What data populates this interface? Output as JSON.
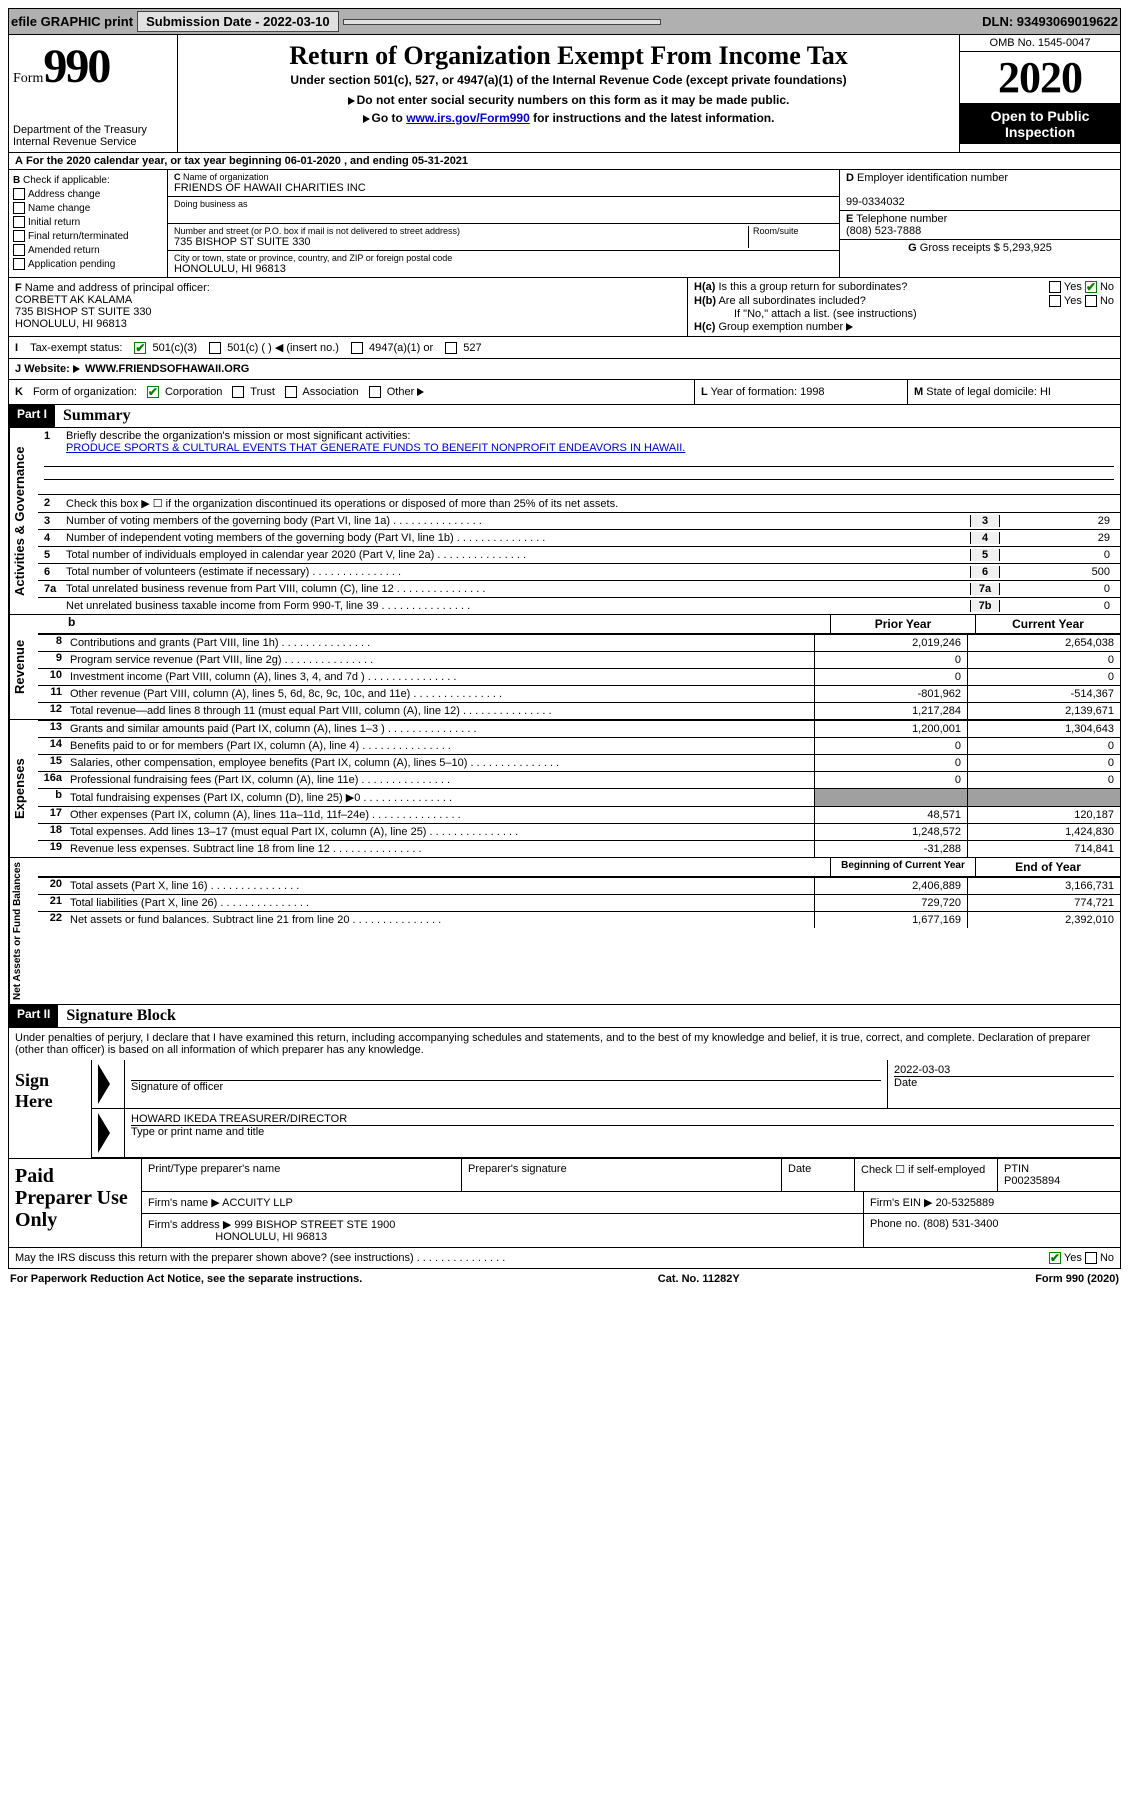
{
  "topbar": {
    "efile": "efile GRAPHIC print",
    "submission_label": "Submission Date - 2022-03-10",
    "dln": "DLN: 93493069019622"
  },
  "header": {
    "form_prefix": "Form",
    "form_number": "990",
    "dept": "Department of the Treasury",
    "irs": "Internal Revenue Service",
    "title": "Return of Organization Exempt From Income Tax",
    "subtitle": "Under section 501(c), 527, or 4947(a)(1) of the Internal Revenue Code (except private foundations)",
    "note1": "Do not enter social security numbers on this form as it may be made public.",
    "note2_pre": "Go to ",
    "note2_link": "www.irs.gov/Form990",
    "note2_post": " for instructions and the latest information.",
    "omb": "OMB No. 1545-0047",
    "year": "2020",
    "inspection": "Open to Public Inspection"
  },
  "rowA": "For the 2020 calendar year, or tax year beginning 06-01-2020    , and ending 05-31-2021",
  "boxB": {
    "label": "Check if applicable:",
    "opts": [
      "Address change",
      "Name change",
      "Initial return",
      "Final return/terminated",
      "Amended return",
      "Application pending"
    ]
  },
  "boxC": {
    "name_label": "Name of organization",
    "name": "FRIENDS OF HAWAII CHARITIES INC",
    "dba_label": "Doing business as",
    "street_label": "Number and street (or P.O. box if mail is not delivered to street address)",
    "room_label": "Room/suite",
    "street": "735 BISHOP ST SUITE 330",
    "city_label": "City or town, state or province, country, and ZIP or foreign postal code",
    "city": "HONOLULU, HI  96813"
  },
  "boxD": {
    "ein_label": "Employer identification number",
    "ein": "99-0334032",
    "phone_label": "Telephone number",
    "phone": "(808) 523-7888",
    "gross_label": "Gross receipts $",
    "gross": "5,293,925"
  },
  "boxF": {
    "label": "Name and address of principal officer:",
    "name": "CORBETT AK KALAMA",
    "addr1": "735 BISHOP ST SUITE 330",
    "addr2": "HONOLULU, HI  96813"
  },
  "boxH": {
    "a": "Is this a group return for subordinates?",
    "b": "Are all subordinates included?",
    "note": "If \"No,\" attach a list. (see instructions)",
    "c": "Group exemption number"
  },
  "taxExempt": {
    "label": "Tax-exempt status:",
    "c3": "501(c)(3)",
    "c": "501(c) (  )",
    "insert": "(insert no.)",
    "a1": "4947(a)(1) or",
    "s527": "527"
  },
  "website": {
    "label": "Website:",
    "value": "WWW.FRIENDSOFHAWAII.ORG"
  },
  "rowK": {
    "label": "Form of organization:",
    "opts": [
      "Corporation",
      "Trust",
      "Association",
      "Other"
    ],
    "L_label": "Year of formation:",
    "L_val": "1998",
    "M_label": "State of legal domicile:",
    "M_val": "HI"
  },
  "part1": {
    "hdr": "Part I",
    "title": "Summary"
  },
  "summary": {
    "q1": "Briefly describe the organization's mission or most significant activities:",
    "mission": "PRODUCE SPORTS & CULTURAL EVENTS THAT GENERATE FUNDS TO BENEFIT NONPROFIT ENDEAVORS IN HAWAII.",
    "q2": "Check this box ▶ ☐  if the organization discontinued its operations or disposed of more than 25% of its net assets.",
    "lines_gov": [
      {
        "n": "3",
        "t": "Number of voting members of the governing body (Part VI, line 1a)",
        "box": "3",
        "v": "29"
      },
      {
        "n": "4",
        "t": "Number of independent voting members of the governing body (Part VI, line 1b)",
        "box": "4",
        "v": "29"
      },
      {
        "n": "5",
        "t": "Total number of individuals employed in calendar year 2020 (Part V, line 2a)",
        "box": "5",
        "v": "0"
      },
      {
        "n": "6",
        "t": "Total number of volunteers (estimate if necessary)",
        "box": "6",
        "v": "500"
      },
      {
        "n": "7a",
        "t": "Total unrelated business revenue from Part VIII, column (C), line 12",
        "box": "7a",
        "v": "0"
      },
      {
        "n": "",
        "t": "Net unrelated business taxable income from Form 990-T, line 39",
        "box": "7b",
        "v": "0"
      }
    ],
    "hdr_prior": "Prior Year",
    "hdr_current": "Current Year",
    "revenue": [
      {
        "n": "8",
        "t": "Contributions and grants (Part VIII, line 1h)",
        "p": "2,019,246",
        "c": "2,654,038"
      },
      {
        "n": "9",
        "t": "Program service revenue (Part VIII, line 2g)",
        "p": "0",
        "c": "0"
      },
      {
        "n": "10",
        "t": "Investment income (Part VIII, column (A), lines 3, 4, and 7d )",
        "p": "0",
        "c": "0"
      },
      {
        "n": "11",
        "t": "Other revenue (Part VIII, column (A), lines 5, 6d, 8c, 9c, 10c, and 11e)",
        "p": "-801,962",
        "c": "-514,367"
      },
      {
        "n": "12",
        "t": "Total revenue—add lines 8 through 11 (must equal Part VIII, column (A), line 12)",
        "p": "1,217,284",
        "c": "2,139,671"
      }
    ],
    "expenses": [
      {
        "n": "13",
        "t": "Grants and similar amounts paid (Part IX, column (A), lines 1–3 )",
        "p": "1,200,001",
        "c": "1,304,643"
      },
      {
        "n": "14",
        "t": "Benefits paid to or for members (Part IX, column (A), line 4)",
        "p": "0",
        "c": "0"
      },
      {
        "n": "15",
        "t": "Salaries, other compensation, employee benefits (Part IX, column (A), lines 5–10)",
        "p": "0",
        "c": "0"
      },
      {
        "n": "16a",
        "t": "Professional fundraising fees (Part IX, column (A), line 11e)",
        "p": "0",
        "c": "0"
      },
      {
        "n": "b",
        "t": "Total fundraising expenses (Part IX, column (D), line 25) ▶0",
        "p": "",
        "c": "",
        "shaded": true
      },
      {
        "n": "17",
        "t": "Other expenses (Part IX, column (A), lines 11a–11d, 11f–24e)",
        "p": "48,571",
        "c": "120,187"
      },
      {
        "n": "18",
        "t": "Total expenses. Add lines 13–17 (must equal Part IX, column (A), line 25)",
        "p": "1,248,572",
        "c": "1,424,830"
      },
      {
        "n": "19",
        "t": "Revenue less expenses. Subtract line 18 from line 12",
        "p": "-31,288",
        "c": "714,841"
      }
    ],
    "hdr_begin": "Beginning of Current Year",
    "hdr_end": "End of Year",
    "netassets": [
      {
        "n": "20",
        "t": "Total assets (Part X, line 16)",
        "p": "2,406,889",
        "c": "3,166,731"
      },
      {
        "n": "21",
        "t": "Total liabilities (Part X, line 26)",
        "p": "729,720",
        "c": "774,721"
      },
      {
        "n": "22",
        "t": "Net assets or fund balances. Subtract line 21 from line 20",
        "p": "1,677,169",
        "c": "2,392,010"
      }
    ],
    "vlabels": {
      "gov": "Activities & Governance",
      "rev": "Revenue",
      "exp": "Expenses",
      "net": "Net Assets or Fund Balances"
    }
  },
  "part2": {
    "hdr": "Part II",
    "title": "Signature Block"
  },
  "sig": {
    "perjury": "Under penalties of perjury, I declare that I have examined this return, including accompanying schedules and statements, and to the best of my knowledge and belief, it is true, correct, and complete. Declaration of preparer (other than officer) is based on all information of which preparer has any knowledge.",
    "sign_here": "Sign Here",
    "sig_officer": "Signature of officer",
    "date_label": "Date",
    "date": "2022-03-03",
    "officer": "HOWARD IKEDA  TREASURER/DIRECTOR",
    "type_print": "Type or print name and title"
  },
  "prep": {
    "title": "Paid Preparer Use Only",
    "print_name": "Print/Type preparer's name",
    "prep_sig": "Preparer's signature",
    "date": "Date",
    "check": "Check ☐ if self-employed",
    "ptin_label": "PTIN",
    "ptin": "P00235894",
    "firm_name_label": "Firm's name ▶",
    "firm_name": "ACCUITY LLP",
    "firm_ein_label": "Firm's EIN ▶",
    "firm_ein": "20-5325889",
    "firm_addr_label": "Firm's address ▶",
    "firm_addr1": "999 BISHOP STREET STE 1900",
    "firm_addr2": "HONOLULU, HI  96813",
    "phone_label": "Phone no.",
    "phone": "(808) 531-3400",
    "discuss": "May the IRS discuss this return with the preparer shown above? (see instructions)"
  },
  "footer": {
    "left": "For Paperwork Reduction Act Notice, see the separate instructions.",
    "mid": "Cat. No. 11282Y",
    "right": "Form 990 (2020)"
  }
}
